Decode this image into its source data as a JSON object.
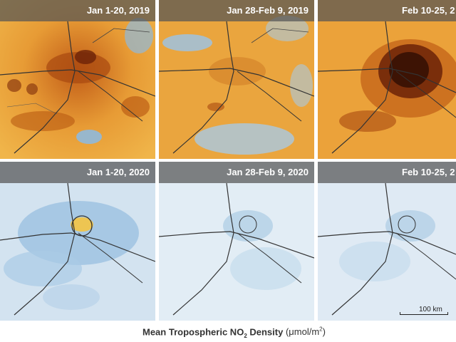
{
  "panels": [
    {
      "date": "Jan 1-20, 2019",
      "year": 2019,
      "no2_level": "high"
    },
    {
      "date": "Jan 28-Feb 9, 2019",
      "year": 2019,
      "no2_level": "high"
    },
    {
      "date": "Feb 10-25, 2",
      "year": 2019,
      "no2_level": "very high"
    },
    {
      "date": "Jan 1-20, 2020",
      "year": 2020,
      "no2_level": "low"
    },
    {
      "date": "Jan 28-Feb 9, 2020",
      "year": 2020,
      "no2_level": "very low"
    },
    {
      "date": "Feb 10-25, 2",
      "year": 2020,
      "no2_level": "very low"
    }
  ],
  "scale": {
    "label": "100 km"
  },
  "legend": {
    "title_prefix": "Mean Tropospheric NO",
    "subscript": "2",
    "title_suffix": " Density ",
    "unit_prefix": "(μmol/m",
    "unit_superscript": "2",
    "unit_suffix": ")"
  },
  "colors": {
    "high": "#e9a23b",
    "peak": "#3a1204",
    "low": "#dce9f3",
    "blue": "#8fb9dd",
    "date_bar": "#555555"
  }
}
